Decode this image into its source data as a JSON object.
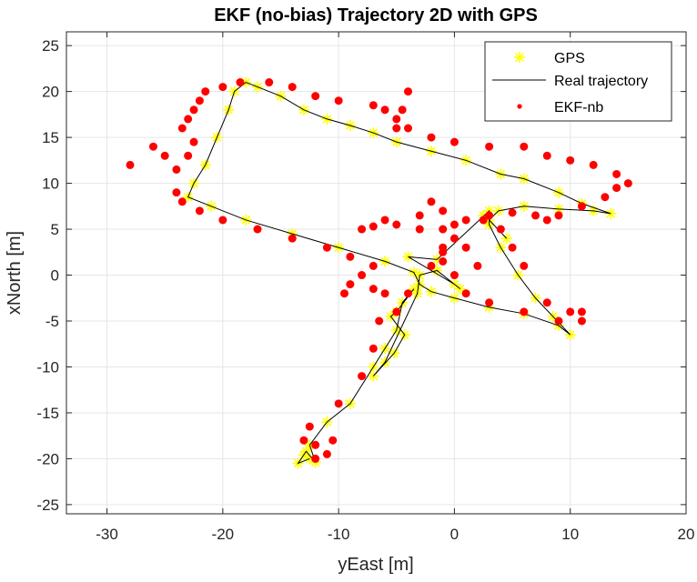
{
  "chart_data": {
    "type": "scatter",
    "title": "EKF (no-bias) Trajectory 2D with GPS",
    "xlabel": "yEast [m]",
    "ylabel": "xNorth [m]",
    "xlim": [
      -33.5,
      20
    ],
    "ylim": [
      -26,
      26.5
    ],
    "x_ticks": [
      -30,
      -20,
      -10,
      0,
      10,
      20
    ],
    "y_ticks": [
      -25,
      -20,
      -15,
      -10,
      -5,
      0,
      5,
      10,
      15,
      20,
      25
    ],
    "grid": true,
    "legend_location": "top-right",
    "series": [
      {
        "name": "GPS",
        "marker": "asterisk",
        "color": "#ffff00",
        "points": [
          [
            -12.5,
            -20
          ],
          [
            -13.5,
            -20.5
          ],
          [
            -12.8,
            -19.2
          ],
          [
            -12.0,
            -20.4
          ],
          [
            -13.0,
            -19.6
          ],
          [
            -12.5,
            -18.5
          ],
          [
            -11,
            -16
          ],
          [
            -9,
            -14
          ],
          [
            -7,
            -10
          ],
          [
            -6,
            -8
          ],
          [
            -5,
            -6
          ],
          [
            -4.5,
            -3
          ],
          [
            -3.5,
            -1.5
          ],
          [
            -5,
            -4
          ],
          [
            -5.5,
            -4.5
          ],
          [
            -4.3,
            -6.5
          ],
          [
            -5.2,
            -8.5
          ],
          [
            -6,
            -9.5
          ],
          [
            -7,
            -11
          ],
          [
            -3.2,
            -2
          ],
          [
            -3,
            0
          ],
          [
            -1.5,
            0.5
          ],
          [
            0,
            -1
          ],
          [
            0.5,
            -1.5
          ],
          [
            -4,
            2
          ],
          [
            -1.5,
            1.7
          ],
          [
            3,
            7
          ],
          [
            2.5,
            6.5
          ],
          [
            3,
            5.5
          ],
          [
            4,
            3
          ],
          [
            5.5,
            0
          ],
          [
            7,
            -2.5
          ],
          [
            8.5,
            -4.5
          ],
          [
            10,
            -6.5
          ],
          [
            9,
            -5.5
          ],
          [
            6,
            -4.2
          ],
          [
            3,
            -3.5
          ],
          [
            0,
            -2.5
          ],
          [
            -2,
            -1.8
          ],
          [
            -3,
            -1
          ],
          [
            -3.5,
            0.3
          ],
          [
            -6,
            1.5
          ],
          [
            -10,
            3
          ],
          [
            -14,
            4.5
          ],
          [
            -18,
            6
          ],
          [
            -21,
            7.5
          ],
          [
            -23,
            8.5
          ],
          [
            -22.5,
            10
          ],
          [
            -21.5,
            12
          ],
          [
            -20.5,
            15
          ],
          [
            -19.5,
            18
          ],
          [
            -19,
            20
          ],
          [
            -18,
            21
          ],
          [
            -17,
            20.5
          ],
          [
            -15,
            19.5
          ],
          [
            -13,
            18
          ],
          [
            -11,
            17
          ],
          [
            -9,
            16.3
          ],
          [
            -7,
            15.5
          ],
          [
            -5,
            14.5
          ],
          [
            -2,
            13.5
          ],
          [
            1,
            12.5
          ],
          [
            4,
            11
          ],
          [
            6,
            10.5
          ],
          [
            9,
            9
          ],
          [
            11,
            7.8
          ],
          [
            13.5,
            6.7
          ],
          [
            12,
            7
          ],
          [
            9,
            7.2
          ],
          [
            6,
            7.5
          ],
          [
            3.8,
            7
          ],
          [
            3,
            6
          ],
          [
            4.5,
            4
          ]
        ]
      },
      {
        "name": "Real trajectory",
        "line": "solid",
        "color": "#000000",
        "points": [
          [
            -12.5,
            -20
          ],
          [
            -13.5,
            -20.5
          ],
          [
            -12.8,
            -19.2
          ],
          [
            -12.0,
            -20.4
          ],
          [
            -12.5,
            -18.5
          ],
          [
            -11,
            -16
          ],
          [
            -9,
            -14
          ],
          [
            -7,
            -10
          ],
          [
            -6,
            -8
          ],
          [
            -5,
            -6
          ],
          [
            -4.5,
            -3
          ],
          [
            -3.5,
            -1.5
          ],
          [
            -5,
            -4
          ],
          [
            -5.5,
            -4.5
          ],
          [
            -4.3,
            -6.5
          ],
          [
            -5.2,
            -8.5
          ],
          [
            -7,
            -11
          ],
          [
            -6,
            -9.5
          ],
          [
            -3.2,
            -2
          ],
          [
            -3,
            0
          ],
          [
            -1.5,
            0.5
          ],
          [
            0,
            -1
          ],
          [
            0.5,
            -1.5
          ],
          [
            0,
            -1
          ],
          [
            -4,
            2
          ],
          [
            -1.5,
            1.7
          ],
          [
            3,
            7
          ],
          [
            3,
            5.5
          ],
          [
            4,
            3
          ],
          [
            5.5,
            0
          ],
          [
            7,
            -2.5
          ],
          [
            8.5,
            -4.5
          ],
          [
            10,
            -6.5
          ],
          [
            9,
            -5.5
          ],
          [
            6,
            -4.2
          ],
          [
            3,
            -3.5
          ],
          [
            0,
            -2.5
          ],
          [
            -2,
            -1.8
          ],
          [
            -3,
            -1
          ],
          [
            -3.5,
            0.3
          ],
          [
            -6,
            1.5
          ],
          [
            -10,
            3
          ],
          [
            -14,
            4.5
          ],
          [
            -18,
            6
          ],
          [
            -21,
            7.5
          ],
          [
            -23,
            8.5
          ],
          [
            -22.5,
            10
          ],
          [
            -21.5,
            12
          ],
          [
            -20.5,
            15
          ],
          [
            -19.5,
            18
          ],
          [
            -19,
            20
          ],
          [
            -18,
            21
          ],
          [
            -17,
            20.5
          ],
          [
            -15,
            19.5
          ],
          [
            -13,
            18
          ],
          [
            -11,
            17
          ],
          [
            -9,
            16.3
          ],
          [
            -7,
            15.5
          ],
          [
            -5,
            14.5
          ],
          [
            -2,
            13.5
          ],
          [
            1,
            12.5
          ],
          [
            4,
            11
          ],
          [
            6,
            10.5
          ],
          [
            9,
            9
          ],
          [
            11,
            7.8
          ],
          [
            13.5,
            6.7
          ],
          [
            12,
            7
          ],
          [
            9,
            7.2
          ],
          [
            6,
            7.5
          ],
          [
            3.8,
            7
          ],
          [
            3,
            6
          ],
          [
            4.5,
            4
          ]
        ]
      },
      {
        "name": "EKF-nb",
        "marker": "dot",
        "color": "#ff0000",
        "points": [
          [
            -28,
            12
          ],
          [
            -25,
            13
          ],
          [
            -26,
            14
          ],
          [
            -23,
            13
          ],
          [
            -24,
            11.5
          ],
          [
            -24,
            9
          ],
          [
            -23.5,
            8
          ],
          [
            -22,
            7
          ],
          [
            -20,
            6
          ],
          [
            -17,
            5
          ],
          [
            -14,
            4
          ],
          [
            -11,
            3
          ],
          [
            -9,
            2
          ],
          [
            -7,
            1
          ],
          [
            -8,
            0
          ],
          [
            -9,
            -1
          ],
          [
            -9.5,
            -2
          ],
          [
            -7,
            -1.5
          ],
          [
            -6,
            -2
          ],
          [
            -6.5,
            -5
          ],
          [
            -7,
            -8
          ],
          [
            -8,
            -11
          ],
          [
            -10,
            -14
          ],
          [
            -12.5,
            -16.5
          ],
          [
            -13,
            -18
          ],
          [
            -12,
            -18.5
          ],
          [
            -10.5,
            -18
          ],
          [
            -11,
            -19.5
          ],
          [
            -12,
            -20
          ],
          [
            -5,
            -4
          ],
          [
            -4,
            -2
          ],
          [
            -2,
            1
          ],
          [
            -1,
            1.5
          ],
          [
            0,
            0
          ],
          [
            1,
            -2
          ],
          [
            3,
            -3
          ],
          [
            6,
            -4
          ],
          [
            9,
            -5
          ],
          [
            11,
            -5
          ],
          [
            11,
            -4
          ],
          [
            10,
            -4
          ],
          [
            8,
            -3
          ],
          [
            6,
            1
          ],
          [
            5,
            3
          ],
          [
            4,
            5
          ],
          [
            3,
            6.5
          ],
          [
            5,
            6.8
          ],
          [
            7,
            6.5
          ],
          [
            8,
            6
          ],
          [
            9,
            6.5
          ],
          [
            11,
            7.5
          ],
          [
            13,
            8.5
          ],
          [
            14,
            9.5
          ],
          [
            15,
            10
          ],
          [
            14,
            11
          ],
          [
            12,
            12
          ],
          [
            10,
            12.5
          ],
          [
            8,
            13
          ],
          [
            6,
            14
          ],
          [
            3,
            14
          ],
          [
            0,
            14.5
          ],
          [
            -2,
            15
          ],
          [
            -4,
            16
          ],
          [
            -5,
            17
          ],
          [
            -6,
            18
          ],
          [
            -7,
            18.5
          ],
          [
            -10,
            19
          ],
          [
            -12,
            19.5
          ],
          [
            -14,
            20.5
          ],
          [
            -16,
            21
          ],
          [
            -18.5,
            21
          ],
          [
            -20,
            20.5
          ],
          [
            -21.5,
            20
          ],
          [
            -22,
            19
          ],
          [
            -22.5,
            18
          ],
          [
            -23,
            17
          ],
          [
            -23.5,
            16
          ],
          [
            -22.5,
            14.5
          ],
          [
            -5,
            16
          ],
          [
            -4.5,
            18
          ],
          [
            -4,
            20
          ],
          [
            -1,
            5
          ],
          [
            -3,
            5
          ],
          [
            -5,
            5.5
          ],
          [
            -7,
            5.3
          ],
          [
            -8,
            5
          ],
          [
            -6,
            6
          ],
          [
            -3,
            6.5
          ],
          [
            -1,
            7
          ],
          [
            -2,
            8
          ],
          [
            1,
            6
          ],
          [
            2.5,
            6
          ],
          [
            0,
            4
          ],
          [
            -1,
            3
          ],
          [
            0,
            5.5
          ],
          [
            -1,
            2.5
          ],
          [
            2,
            1
          ],
          [
            1,
            3
          ]
        ]
      }
    ]
  }
}
